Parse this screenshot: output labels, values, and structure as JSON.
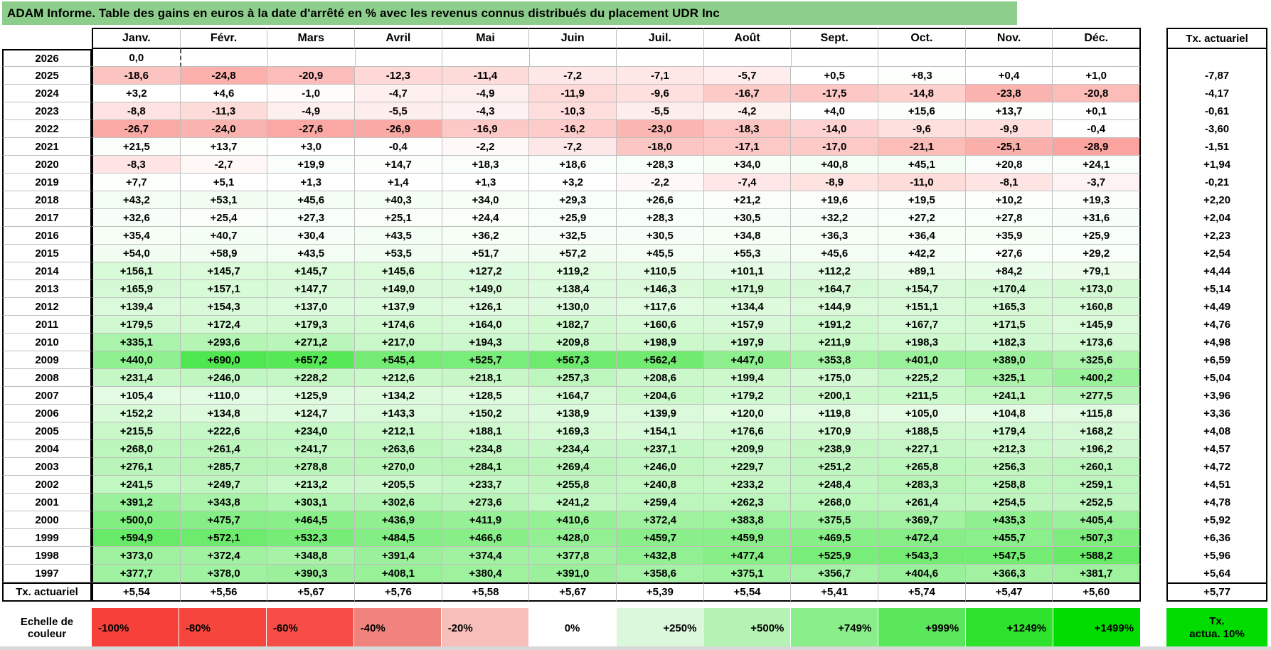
{
  "title": "ADAM Informe. Table des gains en euros à la date d'arrêté en % avec les revenus connus distribués du placement UDR Inc",
  "colors": {
    "title_bg": "#8DCE8D",
    "gridline": "#BFBFBF",
    "heat_negative_end": "#F64036",
    "heat_positive_end": "#00DC00"
  },
  "chart_data": {
    "type": "heatmap-table",
    "title": "ADAM Informe. Table des gains en euros à la date d'arrêté en % avec les revenus connus distribués du placement UDR Inc",
    "columns": [
      "Janv.",
      "Févr.",
      "Mars",
      "Avril",
      "Mai",
      "Juin",
      "Juil.",
      "Août",
      "Sept.",
      "Oct.",
      "Nov.",
      "Déc."
    ],
    "tx_header": "Tx. actuariel",
    "selected_cell": {
      "year": "2026",
      "col": 0
    },
    "rows": [
      {
        "year": "2026",
        "values": [
          "0,0",
          "",
          "",
          "",
          "",
          "",
          "",
          "",
          "",
          "",
          "",
          ""
        ],
        "tx": ""
      },
      {
        "year": "2025",
        "values": [
          "-18,6",
          "-24,8",
          "-20,9",
          "-12,3",
          "-11,4",
          "-7,2",
          "-7,1",
          "-5,7",
          "+0,5",
          "+8,3",
          "+0,4",
          "+1,0"
        ],
        "tx": "-7,87"
      },
      {
        "year": "2024",
        "values": [
          "+3,2",
          "+4,6",
          "-1,0",
          "-4,7",
          "-4,9",
          "-11,9",
          "-9,6",
          "-16,7",
          "-17,5",
          "-14,8",
          "-23,8",
          "-20,8"
        ],
        "tx": "-4,17"
      },
      {
        "year": "2023",
        "values": [
          "-8,8",
          "-11,3",
          "-4,9",
          "-5,5",
          "-4,3",
          "-10,3",
          "-5,5",
          "-4,2",
          "+4,0",
          "+15,6",
          "+13,7",
          "+0,1"
        ],
        "tx": "-0,61"
      },
      {
        "year": "2022",
        "values": [
          "-26,7",
          "-24,0",
          "-27,6",
          "-26,9",
          "-16,9",
          "-16,2",
          "-23,0",
          "-18,3",
          "-14,0",
          "-9,6",
          "-9,9",
          "-0,4"
        ],
        "tx": "-3,60"
      },
      {
        "year": "2021",
        "values": [
          "+21,5",
          "+13,7",
          "+3,0",
          "-0,4",
          "-2,2",
          "-7,2",
          "-18,0",
          "-17,1",
          "-17,0",
          "-21,1",
          "-25,1",
          "-28,9"
        ],
        "tx": "-1,51"
      },
      {
        "year": "2020",
        "values": [
          "-8,3",
          "-2,7",
          "+19,9",
          "+14,7",
          "+18,3",
          "+18,6",
          "+28,3",
          "+34,0",
          "+40,8",
          "+45,1",
          "+20,8",
          "+24,1"
        ],
        "tx": "+1,94"
      },
      {
        "year": "2019",
        "values": [
          "+7,7",
          "+5,1",
          "+1,3",
          "+1,4",
          "+1,3",
          "+3,2",
          "-2,2",
          "-7,4",
          "-8,9",
          "-11,0",
          "-8,1",
          "-3,7"
        ],
        "tx": "-0,21"
      },
      {
        "year": "2018",
        "values": [
          "+43,2",
          "+53,1",
          "+45,6",
          "+40,3",
          "+34,0",
          "+29,3",
          "+26,6",
          "+21,2",
          "+19,6",
          "+19,5",
          "+10,2",
          "+19,3"
        ],
        "tx": "+2,20"
      },
      {
        "year": "2017",
        "values": [
          "+32,6",
          "+25,4",
          "+27,3",
          "+25,1",
          "+24,4",
          "+25,9",
          "+28,3",
          "+30,5",
          "+32,2",
          "+27,2",
          "+27,8",
          "+31,6"
        ],
        "tx": "+2,04"
      },
      {
        "year": "2016",
        "values": [
          "+35,4",
          "+40,7",
          "+30,4",
          "+43,5",
          "+36,2",
          "+32,5",
          "+30,5",
          "+34,8",
          "+36,3",
          "+36,4",
          "+35,9",
          "+25,9"
        ],
        "tx": "+2,23"
      },
      {
        "year": "2015",
        "values": [
          "+54,0",
          "+58,9",
          "+43,5",
          "+53,5",
          "+51,7",
          "+57,2",
          "+45,5",
          "+55,3",
          "+45,6",
          "+42,2",
          "+27,6",
          "+29,2"
        ],
        "tx": "+2,54"
      },
      {
        "year": "2014",
        "values": [
          "+156,1",
          "+145,7",
          "+145,7",
          "+145,6",
          "+127,2",
          "+119,2",
          "+110,5",
          "+101,1",
          "+112,2",
          "+89,1",
          "+84,2",
          "+79,1"
        ],
        "tx": "+4,44"
      },
      {
        "year": "2013",
        "values": [
          "+165,9",
          "+157,1",
          "+147,7",
          "+149,0",
          "+149,0",
          "+138,4",
          "+146,3",
          "+171,9",
          "+164,7",
          "+154,7",
          "+170,4",
          "+173,0"
        ],
        "tx": "+5,14"
      },
      {
        "year": "2012",
        "values": [
          "+139,4",
          "+154,3",
          "+137,0",
          "+137,9",
          "+126,1",
          "+130,0",
          "+117,6",
          "+134,4",
          "+144,9",
          "+151,1",
          "+165,3",
          "+160,8"
        ],
        "tx": "+4,49"
      },
      {
        "year": "2011",
        "values": [
          "+179,5",
          "+172,4",
          "+179,3",
          "+174,6",
          "+164,0",
          "+182,7",
          "+160,6",
          "+157,9",
          "+191,2",
          "+167,7",
          "+171,5",
          "+145,9"
        ],
        "tx": "+4,76"
      },
      {
        "year": "2010",
        "values": [
          "+335,1",
          "+293,6",
          "+271,2",
          "+217,0",
          "+194,3",
          "+209,8",
          "+198,9",
          "+197,9",
          "+211,9",
          "+198,3",
          "+182,3",
          "+173,6"
        ],
        "tx": "+4,98"
      },
      {
        "year": "2009",
        "values": [
          "+440,0",
          "+690,0",
          "+657,2",
          "+545,4",
          "+525,7",
          "+567,3",
          "+562,4",
          "+447,0",
          "+353,8",
          "+401,0",
          "+389,0",
          "+325,6"
        ],
        "tx": "+6,59"
      },
      {
        "year": "2008",
        "values": [
          "+231,4",
          "+246,0",
          "+228,2",
          "+212,6",
          "+218,1",
          "+257,3",
          "+208,6",
          "+199,4",
          "+175,0",
          "+225,2",
          "+325,1",
          "+400,2"
        ],
        "tx": "+5,04"
      },
      {
        "year": "2007",
        "values": [
          "+105,4",
          "+110,0",
          "+125,9",
          "+134,2",
          "+128,5",
          "+164,7",
          "+204,6",
          "+179,2",
          "+200,1",
          "+211,5",
          "+241,1",
          "+277,5"
        ],
        "tx": "+3,96"
      },
      {
        "year": "2006",
        "values": [
          "+152,2",
          "+134,8",
          "+124,7",
          "+143,3",
          "+150,2",
          "+138,9",
          "+139,9",
          "+120,0",
          "+119,8",
          "+105,0",
          "+104,8",
          "+115,8"
        ],
        "tx": "+3,36"
      },
      {
        "year": "2005",
        "values": [
          "+215,5",
          "+222,6",
          "+234,0",
          "+212,1",
          "+188,1",
          "+169,3",
          "+154,1",
          "+176,6",
          "+170,9",
          "+188,5",
          "+179,4",
          "+168,2"
        ],
        "tx": "+4,08"
      },
      {
        "year": "2004",
        "values": [
          "+268,0",
          "+261,4",
          "+241,7",
          "+263,6",
          "+234,8",
          "+234,4",
          "+237,1",
          "+209,9",
          "+238,9",
          "+227,1",
          "+212,3",
          "+196,2"
        ],
        "tx": "+4,57"
      },
      {
        "year": "2003",
        "values": [
          "+276,1",
          "+285,7",
          "+278,8",
          "+270,0",
          "+284,1",
          "+269,4",
          "+246,0",
          "+229,7",
          "+251,2",
          "+265,8",
          "+256,3",
          "+260,1"
        ],
        "tx": "+4,72"
      },
      {
        "year": "2002",
        "values": [
          "+241,5",
          "+249,7",
          "+213,2",
          "+205,5",
          "+233,7",
          "+255,8",
          "+240,8",
          "+233,2",
          "+248,4",
          "+283,3",
          "+258,8",
          "+259,1"
        ],
        "tx": "+4,51"
      },
      {
        "year": "2001",
        "values": [
          "+391,2",
          "+343,8",
          "+303,1",
          "+302,6",
          "+273,6",
          "+241,2",
          "+259,4",
          "+262,3",
          "+268,0",
          "+261,4",
          "+254,5",
          "+252,5"
        ],
        "tx": "+4,78"
      },
      {
        "year": "2000",
        "values": [
          "+500,0",
          "+475,7",
          "+464,5",
          "+436,9",
          "+411,9",
          "+410,6",
          "+372,4",
          "+383,8",
          "+375,5",
          "+369,7",
          "+435,3",
          "+405,4"
        ],
        "tx": "+5,92"
      },
      {
        "year": "1999",
        "values": [
          "+594,9",
          "+572,1",
          "+532,3",
          "+484,5",
          "+466,6",
          "+428,0",
          "+459,7",
          "+459,9",
          "+469,5",
          "+472,4",
          "+455,7",
          "+507,3"
        ],
        "tx": "+6,36"
      },
      {
        "year": "1998",
        "values": [
          "+373,0",
          "+372,4",
          "+348,8",
          "+391,4",
          "+374,4",
          "+377,8",
          "+432,8",
          "+477,4",
          "+525,9",
          "+543,3",
          "+547,5",
          "+588,2"
        ],
        "tx": "+5,96"
      },
      {
        "year": "1997",
        "values": [
          "+377,7",
          "+378,0",
          "+390,3",
          "+408,1",
          "+380,4",
          "+391,0",
          "+358,6",
          "+375,1",
          "+356,7",
          "+404,6",
          "+366,3",
          "+381,7"
        ],
        "tx": "+5,64"
      }
    ],
    "footer": {
      "label": "Tx. actuariel",
      "values": [
        "+5,54",
        "+5,56",
        "+5,67",
        "+5,76",
        "+5,58",
        "+5,67",
        "+5,39",
        "+5,54",
        "+5,41",
        "+5,74",
        "+5,47",
        "+5,60"
      ],
      "tx": "+5,77"
    }
  },
  "scale": {
    "label_lines": [
      "Echelle de",
      "couleur"
    ],
    "stops": [
      {
        "label": "-100%",
        "color": "#F5413A",
        "align": "left"
      },
      {
        "label": "-80%",
        "color": "#F5453D",
        "align": "left"
      },
      {
        "label": "-60%",
        "color": "#F64E46",
        "align": "left"
      },
      {
        "label": "-40%",
        "color": "#F0837D",
        "align": "left"
      },
      {
        "label": "-20%",
        "color": "#F7BEBA",
        "align": "left"
      },
      {
        "label": "0%",
        "color": "#FFFFFF",
        "align": "center"
      },
      {
        "label": "+250%",
        "color": "#DCF8DC",
        "align": "right"
      },
      {
        "label": "+500%",
        "color": "#B4F3B4",
        "align": "right"
      },
      {
        "label": "+749%",
        "color": "#8AEE8A",
        "align": "right"
      },
      {
        "label": "+999%",
        "color": "#5BE75B",
        "align": "right"
      },
      {
        "label": "+1249%",
        "color": "#2EE22E",
        "align": "right"
      },
      {
        "label": "+1499%",
        "color": "#00DC00",
        "align": "right"
      }
    ],
    "tx_box": {
      "lines": [
        "Tx.",
        "actua. 10%"
      ],
      "color": "#00DC00"
    }
  }
}
